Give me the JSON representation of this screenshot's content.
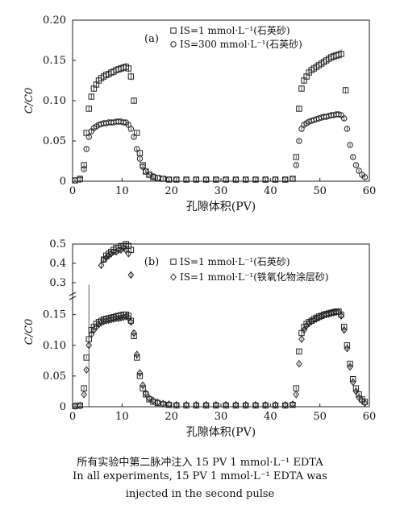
{
  "chart_data": [
    {
      "type": "scatter",
      "panel": "(a)",
      "xlabel": "孔隙体积(PV)",
      "ylabel": "C/C0",
      "xlim": [
        0,
        60
      ],
      "ylim": [
        0,
        0.2
      ],
      "xticks": [
        0,
        10,
        20,
        30,
        40,
        50,
        60
      ],
      "yticks": [
        0,
        0.05,
        0.1,
        0.15,
        0.2
      ],
      "ytick_labels": [
        "0",
        "0.05",
        "0.10",
        "0.15",
        "0.20"
      ],
      "grid": false,
      "legend_position": "top-right",
      "series": [
        {
          "name": "IS=1 mmol·L⁻¹(石英砂)",
          "marker": "square",
          "x": [
            0.5,
            1.5,
            2.3,
            2.8,
            3.3,
            3.8,
            4.3,
            4.8,
            5.3,
            5.8,
            6.3,
            6.8,
            7.3,
            7.8,
            8.3,
            8.8,
            9.3,
            9.8,
            10.3,
            10.8,
            11.3,
            11.8,
            12.4,
            13.0,
            13.6,
            14.2,
            14.8,
            15.5,
            16.3,
            17.2,
            18.3,
            19.5,
            21,
            23,
            25,
            27,
            29,
            31,
            33,
            35,
            37,
            39,
            41,
            43,
            44.5,
            45.2,
            45.8,
            46.3,
            46.8,
            47.3,
            47.8,
            48.3,
            48.8,
            49.3,
            49.8,
            50.3,
            50.8,
            51.3,
            51.8,
            52.3,
            52.8,
            53.3,
            53.8,
            54.3,
            55.2
          ],
          "y": [
            0.001,
            0.003,
            0.02,
            0.06,
            0.09,
            0.105,
            0.115,
            0.12,
            0.125,
            0.128,
            0.13,
            0.132,
            0.133,
            0.135,
            0.136,
            0.138,
            0.139,
            0.14,
            0.141,
            0.142,
            0.14,
            0.13,
            0.1,
            0.06,
            0.035,
            0.02,
            0.012,
            0.008,
            0.005,
            0.004,
            0.003,
            0.002,
            0.002,
            0.002,
            0.002,
            0.002,
            0.002,
            0.002,
            0.002,
            0.002,
            0.002,
            0.002,
            0.002,
            0.002,
            0.003,
            0.03,
            0.09,
            0.115,
            0.125,
            0.13,
            0.135,
            0.138,
            0.14,
            0.142,
            0.144,
            0.146,
            0.148,
            0.15,
            0.152,
            0.154,
            0.155,
            0.156,
            0.157,
            0.158,
            0.113
          ]
        },
        {
          "name": "IS=300 mmol·L⁻¹(石英砂)",
          "marker": "circle",
          "x": [
            0.5,
            1.5,
            2.3,
            2.8,
            3.3,
            3.8,
            4.3,
            4.8,
            5.3,
            5.8,
            6.3,
            6.8,
            7.3,
            7.8,
            8.3,
            8.8,
            9.3,
            9.8,
            10.3,
            10.8,
            11.3,
            11.8,
            12.4,
            13.0,
            13.6,
            14.2,
            14.8,
            15.5,
            16.3,
            17.2,
            18.3,
            19.5,
            21,
            23,
            25,
            27,
            29,
            31,
            33,
            35,
            37,
            39,
            41,
            43,
            44.5,
            45.2,
            45.8,
            46.3,
            46.8,
            47.3,
            47.8,
            48.3,
            48.8,
            49.3,
            49.8,
            50.3,
            50.8,
            51.3,
            51.8,
            52.3,
            52.8,
            53.3,
            53.8,
            54.3,
            54.9,
            55.5,
            56.1,
            56.7,
            57.3,
            57.9,
            58.5,
            59.1
          ],
          "y": [
            0.001,
            0.002,
            0.015,
            0.04,
            0.055,
            0.062,
            0.066,
            0.068,
            0.07,
            0.071,
            0.072,
            0.072,
            0.073,
            0.073,
            0.073,
            0.074,
            0.074,
            0.074,
            0.073,
            0.073,
            0.07,
            0.065,
            0.055,
            0.04,
            0.028,
            0.018,
            0.012,
            0.008,
            0.006,
            0.004,
            0.003,
            0.002,
            0.002,
            0.002,
            0.002,
            0.002,
            0.002,
            0.002,
            0.002,
            0.002,
            0.002,
            0.002,
            0.002,
            0.002,
            0.003,
            0.02,
            0.05,
            0.065,
            0.07,
            0.072,
            0.074,
            0.075,
            0.076,
            0.077,
            0.078,
            0.079,
            0.08,
            0.08,
            0.081,
            0.082,
            0.082,
            0.083,
            0.083,
            0.082,
            0.078,
            0.065,
            0.045,
            0.03,
            0.02,
            0.013,
            0.008,
            0.005
          ]
        }
      ]
    },
    {
      "type": "scatter",
      "panel": "(b)",
      "xlabel": "孔隙体积(PV)",
      "ylabel": "C/C0",
      "xlim": [
        0,
        60
      ],
      "ylim": [
        0,
        0.5
      ],
      "axis_break": [
        0.15,
        0.3
      ],
      "xticks": [
        0,
        10,
        20,
        30,
        40,
        50,
        60
      ],
      "yticks": [
        0,
        0.05,
        0.1,
        0.15,
        0.3,
        0.4,
        0.5
      ],
      "ytick_labels": [
        "0",
        "0.05",
        "0.10",
        "0.15",
        "0.3",
        "0.4",
        "0.5"
      ],
      "grid": false,
      "legend_position": "top-right",
      "series": [
        {
          "name": "IS=1 mmol·L⁻¹(石英砂)",
          "marker": "square",
          "x": [
            0.5,
            1.5,
            2.3,
            2.8,
            3.3,
            3.8,
            4.3,
            4.8,
            5.3,
            5.8,
            6.3,
            6.8,
            7.3,
            7.8,
            8.3,
            8.8,
            9.3,
            9.8,
            10.3,
            10.8,
            11.3,
            11.8,
            12.4,
            13.0,
            13.6,
            14.2,
            14.8,
            15.5,
            16.3,
            17.2,
            18.3,
            19.5,
            21,
            23,
            25,
            27,
            29,
            31,
            33,
            35,
            37,
            39,
            41,
            43,
            44.5,
            45.2,
            45.8,
            46.3,
            46.8,
            47.3,
            47.8,
            48.3,
            48.8,
            49.3,
            49.8,
            50.3,
            50.8,
            51.3,
            51.8,
            52.3,
            52.8,
            53.3,
            53.8,
            54.3,
            54.9,
            55.5,
            56.1,
            56.7,
            57.3,
            57.9,
            58.5,
            59.1
          ],
          "y": [
            0.001,
            0.002,
            0.03,
            0.08,
            0.11,
            0.125,
            0.13,
            0.135,
            0.138,
            0.14,
            0.142,
            0.143,
            0.144,
            0.145,
            0.146,
            0.147,
            0.148,
            0.149,
            0.15,
            0.15,
            0.148,
            0.14,
            0.115,
            0.08,
            0.05,
            0.03,
            0.02,
            0.012,
            0.008,
            0.006,
            0.004,
            0.003,
            0.002,
            0.002,
            0.002,
            0.002,
            0.002,
            0.002,
            0.002,
            0.002,
            0.002,
            0.002,
            0.002,
            0.002,
            0.003,
            0.03,
            0.09,
            0.12,
            0.13,
            0.135,
            0.138,
            0.14,
            0.143,
            0.145,
            0.147,
            0.148,
            0.15,
            0.151,
            0.152,
            0.153,
            0.154,
            0.155,
            0.155,
            0.15,
            0.13,
            0.1,
            0.07,
            0.045,
            0.03,
            0.02,
            0.012,
            0.008
          ]
        },
        {
          "name": "IS=1 mmol·L⁻¹(铁氧化物涂层砂)",
          "marker": "diamond",
          "x": [
            0.5,
            1.5,
            2.3,
            2.8,
            3.3,
            3.8,
            4.3,
            4.8,
            5.3,
            5.8,
            6.3,
            6.8,
            7.3,
            7.8,
            8.3,
            8.8,
            9.3,
            9.8,
            10.3,
            10.8,
            11.3,
            11.8,
            12.4,
            13.0,
            13.6,
            14.2,
            14.8,
            15.5,
            16.3,
            17.2,
            18.3,
            19.5,
            21,
            23,
            25,
            27,
            29,
            31,
            33,
            35,
            37,
            39,
            41,
            43,
            44.5,
            45.2,
            45.8,
            46.3,
            46.8,
            47.3,
            47.8,
            48.3,
            48.8,
            49.3,
            49.8,
            50.3,
            50.8,
            51.3,
            51.8,
            52.3,
            52.8,
            53.3,
            53.8,
            54.3,
            54.9,
            55.5,
            56.1,
            56.7,
            57.3,
            57.9,
            58.5,
            59.1
          ],
          "y": [
            0.001,
            0.002,
            0.02,
            0.06,
            0.1,
            0.118,
            0.125,
            0.13,
            0.134,
            0.137,
            0.139,
            0.14,
            0.141,
            0.142,
            0.143,
            0.144,
            0.144,
            0.145,
            0.146,
            0.147,
            0.145,
            0.138,
            0.12,
            0.085,
            0.055,
            0.035,
            0.022,
            0.014,
            0.01,
            0.007,
            0.005,
            0.004,
            0.003,
            0.003,
            0.003,
            0.003,
            0.003,
            0.003,
            0.003,
            0.003,
            0.003,
            0.003,
            0.003,
            0.003,
            0.004,
            0.02,
            0.07,
            0.11,
            0.125,
            0.132,
            0.136,
            0.139,
            0.141,
            0.143,
            0.145,
            0.147,
            0.149,
            0.15,
            0.151,
            0.152,
            0.153,
            0.154,
            0.154,
            0.148,
            0.125,
            0.095,
            0.065,
            0.04,
            0.025,
            0.015,
            0.01,
            0.006
          ]
        },
        {
          "name": "IS=1 mmol·L⁻¹(石英砂) upper",
          "marker": "square",
          "upper_segment": true,
          "x": [
            6.3,
            6.8,
            7.3,
            7.8,
            8.3,
            8.8,
            9.3,
            9.8,
            10.3,
            10.8,
            11.3,
            11.8
          ],
          "y": [
            0.42,
            0.44,
            0.45,
            0.46,
            0.47,
            0.48,
            0.48,
            0.49,
            0.49,
            0.5,
            0.49,
            0.47
          ]
        },
        {
          "name": "IS=1 mmol·L⁻¹(铁氧化物涂层砂) upper",
          "marker": "diamond",
          "upper_segment": true,
          "x": [
            5.8,
            6.3,
            6.8,
            7.3,
            7.8,
            8.3,
            8.8,
            9.3,
            9.8,
            10.3,
            10.8,
            11.3,
            11.8
          ],
          "y": [
            0.39,
            0.42,
            0.43,
            0.44,
            0.45,
            0.46,
            0.46,
            0.47,
            0.47,
            0.48,
            0.47,
            0.45,
            0.34
          ]
        }
      ]
    }
  ],
  "caption": {
    "line1": "所有实验中第二脉冲注入 15 PV 1 mmol·L⁻¹ EDTA",
    "line2": "In all experiments, 15 PV 1 mmol·L⁻¹ EDTA was",
    "line3": "injected in the second pulse"
  }
}
